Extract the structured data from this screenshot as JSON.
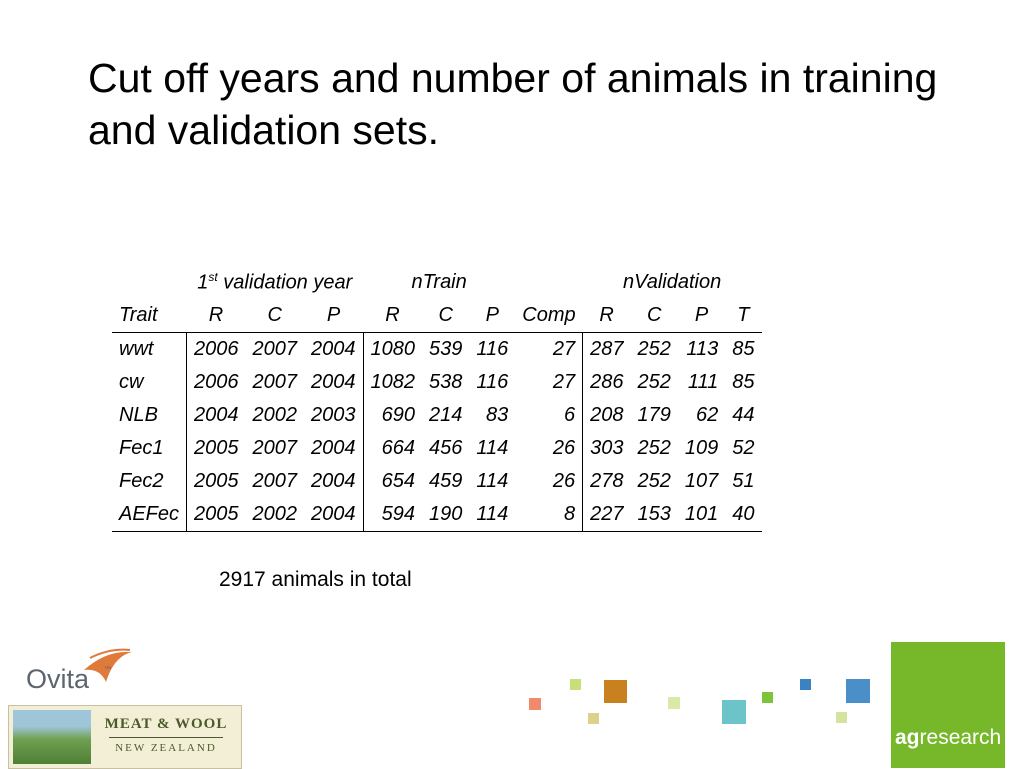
{
  "slide": {
    "title": "Cut off years and number of animals in training and validation sets.",
    "total_note": "2917 animals in total"
  },
  "table": {
    "group_headers": {
      "validation_year_base": "1",
      "validation_year_sup": "st",
      "validation_year_rest": " validation year",
      "ntrain": "nTrain",
      "nvalidation": "nValidation"
    },
    "columns": [
      "Trait",
      "R",
      "C",
      "P",
      "R",
      "C",
      "P",
      "Comp",
      "R",
      "C",
      "P",
      "T"
    ],
    "rows": [
      [
        "wwt",
        "2006",
        "2007",
        "2004",
        "1080",
        "539",
        "116",
        "27",
        "287",
        "252",
        "113",
        "85"
      ],
      [
        "cw",
        "2006",
        "2007",
        "2004",
        "1082",
        "538",
        "116",
        "27",
        "286",
        "252",
        "111",
        "85"
      ],
      [
        "NLB",
        "2004",
        "2002",
        "2003",
        "690",
        "214",
        "83",
        "6",
        "208",
        "179",
        "62",
        "44"
      ],
      [
        "Fec1",
        "2005",
        "2007",
        "2004",
        "664",
        "456",
        "114",
        "26",
        "303",
        "252",
        "109",
        "52"
      ],
      [
        "Fec2",
        "2005",
        "2007",
        "2004",
        "654",
        "459",
        "114",
        "26",
        "278",
        "252",
        "107",
        "51"
      ],
      [
        "AEFec",
        "2005",
        "2002",
        "2004",
        "594",
        "190",
        "114",
        "8",
        "227",
        "153",
        "101",
        "40"
      ]
    ]
  },
  "logos": {
    "ovita": "Ovita",
    "ovita_tm": "™",
    "meat_wool_line1": "MEAT & WOOL",
    "meat_wool_line2": "NEW ZEALAND",
    "agresearch_bold": "ag",
    "agresearch_rest": "research"
  },
  "colors": {
    "agresearch_green": "#76b82a",
    "ovita_orange": "#e07a3a",
    "ovita_gray": "#5c6670"
  }
}
